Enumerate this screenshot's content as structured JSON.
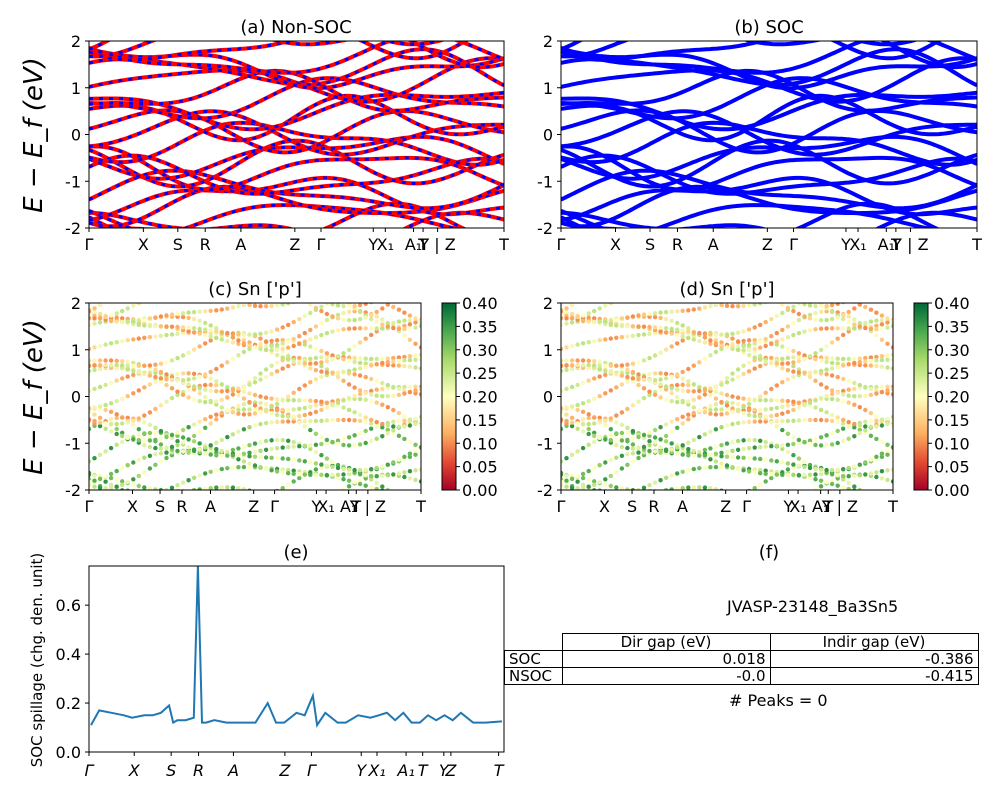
{
  "panels": {
    "a_title": "(a) Non-SOC",
    "b_title": "(b) SOC",
    "c_title": "(c)  Sn ['p']",
    "d_title": "(d) Sn ['p']",
    "e_title": "(e)",
    "f_title": "(f)",
    "band_ylabel": "E − E_f (eV)",
    "spillage_ylabel": "SOC spillage (chg. den. unit)"
  },
  "kpath": {
    "labels": [
      "Γ",
      "X",
      "S",
      "R",
      "A",
      "Z",
      "Γ",
      "Y",
      "X₁",
      "A₁",
      "T",
      "Y | Z",
      "T"
    ],
    "positions": [
      0,
      0.131,
      0.214,
      0.28,
      0.366,
      0.496,
      0.559,
      0.685,
      0.714,
      0.782,
      0.805,
      0.84,
      1.0
    ]
  },
  "info_table": {
    "material": "JVASP-23148_Ba3Sn5",
    "col_headers": [
      "Dir gap (eV)",
      "Indir gap (eV)"
    ],
    "rows": [
      {
        "label": "SOC",
        "dir_gap": "0.018",
        "indir_gap": "-0.386"
      },
      {
        "label": "NSOC",
        "dir_gap": "-0.0",
        "indir_gap": "-0.415"
      }
    ],
    "peaks": "# Peaks = 0"
  },
  "colors": {
    "nonsoc_line": "#ff0000",
    "nonsoc_dash": "#0000ff",
    "soc_line": "#0000ff",
    "spillage_line": "#1f77b4",
    "colormap": "RdYlGn"
  },
  "chart_data": [
    {
      "type": "line",
      "title": "(a) Non-SOC",
      "ylabel": "E − E_f (eV)",
      "ylim": [
        -2,
        2
      ],
      "yticks": [
        -2,
        -1,
        0,
        1,
        2
      ],
      "xticklabels": [
        "Γ",
        "X",
        "S",
        "R",
        "A",
        "Z",
        "Γ",
        "Y",
        "X₁",
        "A₁",
        "T",
        "Y | Z",
        "T"
      ],
      "series": [
        {
          "x": [
            0,
            0.1,
            0.2,
            0.3,
            0.4,
            0.5,
            0.6,
            0.7,
            0.8,
            0.9,
            1.0
          ],
          "y": [
            -1.55,
            -1.45,
            -1.6,
            -1.5,
            -1.4,
            -1.6,
            -1.55,
            -1.45,
            -1.5,
            -1.6,
            -1.5
          ]
        },
        {
          "x": [
            0,
            0.1,
            0.2,
            0.3,
            0.4,
            0.5,
            0.6,
            0.7,
            0.8,
            0.9,
            1.0
          ],
          "y": [
            -1.3,
            -1.2,
            -1.35,
            -1.25,
            -1.2,
            -1.3,
            -1.25,
            -1.15,
            -1.3,
            -1.25,
            -1.2
          ]
        },
        {
          "x": [
            0,
            0.1,
            0.2,
            0.3,
            0.4,
            0.5,
            0.6,
            0.7,
            0.8,
            0.9,
            1.0
          ],
          "y": [
            -0.85,
            -0.95,
            -1.0,
            -1.05,
            -0.95,
            -1.0,
            -0.9,
            -1.0,
            -1.1,
            -1.0,
            -0.95
          ]
        },
        {
          "x": [
            0,
            0.1,
            0.2,
            0.3,
            0.4,
            0.5,
            0.6,
            0.7,
            0.8,
            0.9,
            1.0
          ],
          "y": [
            -0.75,
            -0.7,
            -0.8,
            -0.9,
            -0.85,
            -0.8,
            -0.75,
            -0.85,
            -0.95,
            -0.8,
            -0.85
          ]
        },
        {
          "x": [
            0,
            0.1,
            0.2,
            0.3,
            0.4,
            0.5,
            0.6,
            0.7,
            0.8,
            0.9,
            1.0
          ],
          "y": [
            -0.3,
            -0.35,
            -0.3,
            -0.25,
            -0.3,
            -0.35,
            -0.1,
            0.1,
            0.3,
            0.5,
            0.6
          ]
        },
        {
          "x": [
            0,
            0.1,
            0.2,
            0.3,
            0.4,
            0.5,
            0.6,
            0.7,
            0.8,
            0.9,
            1.0
          ],
          "y": [
            0.0,
            0.15,
            0.3,
            0.45,
            0.3,
            0.1,
            0.0,
            -0.2,
            -0.4,
            -0.6,
            -0.75
          ]
        },
        {
          "x": [
            0,
            0.1,
            0.2,
            0.3,
            0.4,
            0.5,
            0.6,
            0.7,
            0.8,
            0.9,
            1.0
          ],
          "y": [
            0.5,
            0.7,
            0.6,
            0.8,
            0.9,
            0.7,
            0.5,
            0.6,
            0.75,
            0.9,
            1.0
          ]
        },
        {
          "x": [
            0,
            0.1,
            0.2,
            0.3,
            0.4,
            0.5,
            0.6,
            0.7,
            0.8,
            0.9,
            1.0
          ],
          "y": [
            1.0,
            1.2,
            1.4,
            1.2,
            1.3,
            1.5,
            1.25,
            1.1,
            1.3,
            1.5,
            1.4
          ]
        },
        {
          "x": [
            0,
            0.1,
            0.2,
            0.3,
            0.4,
            0.5,
            0.6,
            0.7,
            0.8,
            0.9,
            1.0
          ],
          "y": [
            1.4,
            1.6,
            1.75,
            1.6,
            1.7,
            1.85,
            1.7,
            1.6,
            1.8,
            1.9,
            1.75
          ]
        },
        {
          "x": [
            0,
            0.1,
            0.2,
            0.3,
            0.4,
            0.5,
            0.6,
            0.7,
            0.8,
            0.9,
            1.0
          ],
          "y": [
            1.85,
            1.95,
            1.9,
            1.8,
            1.95,
            2.0,
            1.9,
            1.85,
            1.95,
            2.0,
            1.95
          ]
        }
      ]
    },
    {
      "type": "line",
      "title": "(b) SOC",
      "ylim": [
        -2,
        2
      ],
      "yticks": [
        -2,
        -1,
        0,
        1,
        2
      ],
      "xticklabels": [
        "Γ",
        "X",
        "S",
        "R",
        "A",
        "Z",
        "Γ",
        "Y",
        "X₁",
        "A₁",
        "T",
        "Y | Z",
        "T"
      ],
      "series": [
        {
          "x": [
            0,
            0.1,
            0.2,
            0.3,
            0.4,
            0.5,
            0.6,
            0.7,
            0.8,
            0.9,
            1.0
          ],
          "y": [
            -1.55,
            -1.45,
            -1.6,
            -1.5,
            -1.4,
            -1.6,
            -1.55,
            -1.45,
            -1.5,
            -1.6,
            -1.5
          ]
        },
        {
          "x": [
            0,
            0.1,
            0.2,
            0.3,
            0.4,
            0.5,
            0.6,
            0.7,
            0.8,
            0.9,
            1.0
          ],
          "y": [
            -1.3,
            -1.2,
            -1.35,
            -1.25,
            -1.2,
            -1.3,
            -1.25,
            -1.15,
            -1.3,
            -1.25,
            -1.2
          ]
        },
        {
          "x": [
            0,
            0.1,
            0.2,
            0.3,
            0.4,
            0.5,
            0.6,
            0.7,
            0.8,
            0.9,
            1.0
          ],
          "y": [
            -0.85,
            -0.95,
            -1.0,
            -1.05,
            -0.95,
            -1.0,
            -0.9,
            -1.0,
            -1.1,
            -1.0,
            -0.95
          ]
        },
        {
          "x": [
            0,
            0.1,
            0.2,
            0.3,
            0.4,
            0.5,
            0.6,
            0.7,
            0.8,
            0.9,
            1.0
          ],
          "y": [
            -0.75,
            -0.7,
            -0.8,
            -0.9,
            -0.85,
            -0.8,
            -0.75,
            -0.85,
            -0.95,
            -0.8,
            -0.85
          ]
        },
        {
          "x": [
            0,
            0.1,
            0.2,
            0.3,
            0.4,
            0.5,
            0.6,
            0.7,
            0.8,
            0.9,
            1.0
          ],
          "y": [
            -0.3,
            -0.35,
            -0.3,
            -0.25,
            -0.3,
            -0.35,
            -0.1,
            0.1,
            0.3,
            0.5,
            0.6
          ]
        },
        {
          "x": [
            0,
            0.1,
            0.2,
            0.3,
            0.4,
            0.5,
            0.6,
            0.7,
            0.8,
            0.9,
            1.0
          ],
          "y": [
            0.0,
            0.15,
            0.3,
            0.45,
            0.3,
            0.1,
            0.0,
            -0.2,
            -0.4,
            -0.6,
            -0.75
          ]
        },
        {
          "x": [
            0,
            0.1,
            0.2,
            0.3,
            0.4,
            0.5,
            0.6,
            0.7,
            0.8,
            0.9,
            1.0
          ],
          "y": [
            0.5,
            0.7,
            0.6,
            0.8,
            0.9,
            0.7,
            0.5,
            0.6,
            0.75,
            0.9,
            1.0
          ]
        },
        {
          "x": [
            0,
            0.1,
            0.2,
            0.3,
            0.4,
            0.5,
            0.6,
            0.7,
            0.8,
            0.9,
            1.0
          ],
          "y": [
            1.0,
            1.2,
            1.4,
            1.2,
            1.3,
            1.5,
            1.25,
            1.1,
            1.3,
            1.5,
            1.4
          ]
        },
        {
          "x": [
            0,
            0.1,
            0.2,
            0.3,
            0.4,
            0.5,
            0.6,
            0.7,
            0.8,
            0.9,
            1.0
          ],
          "y": [
            1.4,
            1.6,
            1.75,
            1.6,
            1.7,
            1.85,
            1.7,
            1.6,
            1.8,
            1.9,
            1.75
          ]
        },
        {
          "x": [
            0,
            0.1,
            0.2,
            0.3,
            0.4,
            0.5,
            0.6,
            0.7,
            0.8,
            0.9,
            1.0
          ],
          "y": [
            1.85,
            1.95,
            1.9,
            1.8,
            1.95,
            2.0,
            1.9,
            1.85,
            1.95,
            2.0,
            1.95
          ]
        }
      ]
    },
    {
      "type": "scatter",
      "title": "(c)  Sn ['p']",
      "ylabel": "E − E_f (eV)",
      "ylim": [
        -2,
        2
      ],
      "yticks": [
        -2,
        -1,
        0,
        1,
        2
      ],
      "colorbar": {
        "min": 0.0,
        "max": 0.4,
        "ticks": [
          "0.00",
          "0.05",
          "0.10",
          "0.15",
          "0.20",
          "0.25",
          "0.30",
          "0.35",
          "0.40"
        ],
        "colormap": "RdYlGn"
      },
      "xticklabels": [
        "Γ",
        "X",
        "S",
        "R",
        "A",
        "Z",
        "Γ",
        "Y",
        "X₁",
        "A₁",
        "T",
        "Y | Z",
        "T"
      ]
    },
    {
      "type": "scatter",
      "title": "(d) Sn ['p']",
      "ylim": [
        -2,
        2
      ],
      "yticks": [
        -2,
        -1,
        0,
        1,
        2
      ],
      "colorbar": {
        "min": 0.0,
        "max": 0.4,
        "ticks": [
          "0.00",
          "0.05",
          "0.10",
          "0.15",
          "0.20",
          "0.25",
          "0.30",
          "0.35",
          "0.40"
        ],
        "colormap": "RdYlGn"
      },
      "xticklabels": [
        "Γ",
        "X",
        "S",
        "R",
        "A",
        "Z",
        "Γ",
        "Y",
        "X₁",
        "A₁",
        "T",
        "Y | Z",
        "T"
      ]
    },
    {
      "type": "line",
      "title": "(e)",
      "ylabel": "SOC spillage (chg. den. unit)",
      "ylim": [
        0,
        0.76
      ],
      "yticks": [
        "0.0",
        "0.2",
        "0.4",
        "0.6"
      ],
      "xticklabels": [
        "Γ",
        "X",
        "S",
        "R",
        "A",
        "Z",
        "Γ",
        "Y",
        "X₁",
        "A₁",
        "T",
        "Y",
        "Z",
        "T"
      ],
      "x": [
        0,
        0.02,
        0.05,
        0.08,
        0.1,
        0.13,
        0.15,
        0.17,
        0.19,
        0.2,
        0.21,
        0.23,
        0.25,
        0.26,
        0.27,
        0.28,
        0.3,
        0.33,
        0.36,
        0.4,
        0.43,
        0.45,
        0.47,
        0.5,
        0.52,
        0.54,
        0.55,
        0.57,
        0.6,
        0.62,
        0.65,
        0.68,
        0.7,
        0.72,
        0.74,
        0.76,
        0.78,
        0.8,
        0.82,
        0.84,
        0.86,
        0.88,
        0.9,
        0.93,
        0.96,
        1.0
      ],
      "y": [
        0.11,
        0.17,
        0.16,
        0.15,
        0.14,
        0.15,
        0.15,
        0.16,
        0.19,
        0.12,
        0.13,
        0.13,
        0.14,
        0.76,
        0.12,
        0.12,
        0.13,
        0.12,
        0.12,
        0.12,
        0.2,
        0.12,
        0.12,
        0.16,
        0.15,
        0.23,
        0.11,
        0.16,
        0.12,
        0.12,
        0.15,
        0.14,
        0.15,
        0.16,
        0.13,
        0.16,
        0.12,
        0.12,
        0.15,
        0.13,
        0.15,
        0.13,
        0.16,
        0.12,
        0.12,
        0.125
      ]
    }
  ]
}
